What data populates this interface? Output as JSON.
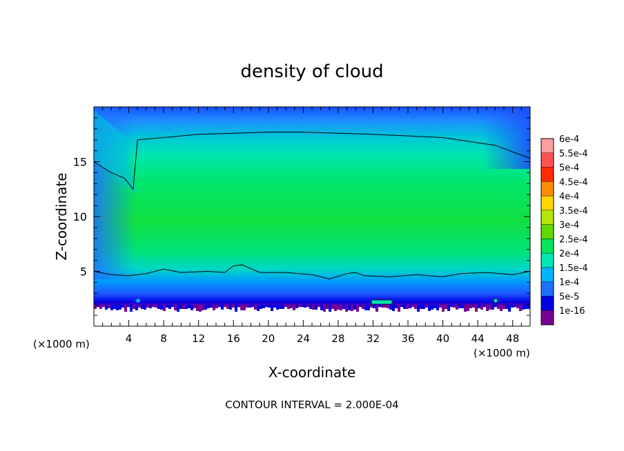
{
  "chart_data": {
    "type": "heatmap",
    "title": "density of cloud",
    "xlabel": "X-coordinate",
    "ylabel": "Z-coordinate",
    "x_unit_left": "(×1000 m)",
    "x_unit_right": "(×1000 m)",
    "x_ticks": [
      "4",
      "8",
      "12",
      "16",
      "20",
      "24",
      "28",
      "32",
      "36",
      "40",
      "44",
      "48"
    ],
    "x_tick_values": [
      4,
      8,
      12,
      16,
      20,
      24,
      28,
      32,
      36,
      40,
      44,
      48
    ],
    "y_ticks": [
      "5",
      "10",
      "15"
    ],
    "y_tick_values": [
      5,
      10,
      15
    ],
    "xlim": [
      0,
      50
    ],
    "ylim": [
      0,
      20
    ],
    "footer": "CONTOUR INTERVAL = 2.000E-04",
    "colorbar": {
      "labels": [
        "6e-4",
        "5.5e-4",
        "5e-4",
        "4.5e-4",
        "4e-4",
        "3.5e-4",
        "3e-4",
        "2.5e-4",
        "2e-4",
        "1.5e-4",
        "1e-4",
        "5e-5",
        "1e-16"
      ],
      "colors": [
        "#ff9f9f",
        "#ff5252",
        "#ff2a00",
        "#ff8c00",
        "#ffd700",
        "#b4e600",
        "#5fd900",
        "#00e65a",
        "#00e6b4",
        "#00b4ff",
        "#1e6eff",
        "#0000e6",
        "#780096"
      ]
    },
    "contour_level": 0.0002,
    "contour_top_z": [
      15,
      14,
      13.5,
      12.5,
      17,
      17.2,
      17.5,
      17.6,
      17.7,
      17.7,
      17.6,
      17.5,
      17.2,
      16.5,
      15.3
    ],
    "contour_top_x": [
      0,
      2,
      3.5,
      4.5,
      5,
      8,
      12,
      16,
      20,
      24,
      28,
      32,
      40,
      46,
      50
    ],
    "contour_bottom_z": [
      5.0,
      4.7,
      4.6,
      4.8,
      5.2,
      4.9,
      5.0,
      4.9,
      5.5,
      5.6,
      4.9,
      4.9,
      4.7,
      4.3,
      4.8,
      4.9,
      4.6,
      4.5,
      4.7,
      4.5,
      4.8,
      4.9,
      4.7,
      5.0
    ],
    "contour_bottom_x": [
      0,
      2,
      4,
      6,
      8,
      10,
      13,
      15,
      16,
      17,
      19,
      22,
      25,
      27,
      29,
      30,
      31,
      34,
      37,
      40,
      42,
      45,
      48,
      50
    ]
  }
}
